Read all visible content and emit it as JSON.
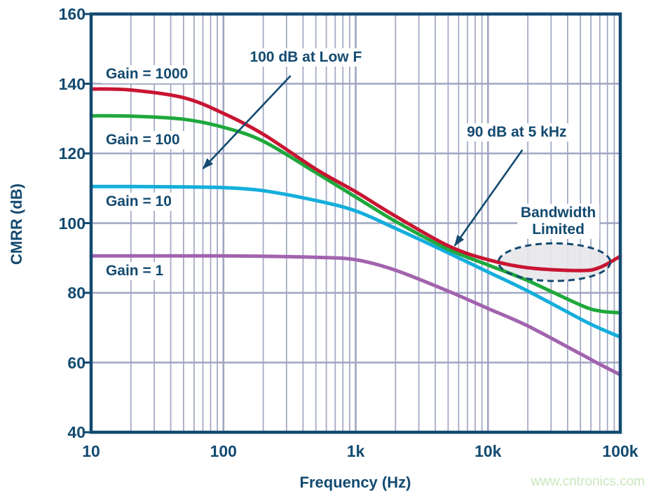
{
  "chart_data": {
    "type": "line",
    "x_scale": "log",
    "xlabel": "Frequency (Hz)",
    "ylabel": "CMRR (dB)",
    "xlim": [
      10,
      100000
    ],
    "ylim": [
      40,
      160
    ],
    "grid": true,
    "x_tick_labels": [
      "10",
      "100",
      "1k",
      "10k",
      "100k"
    ],
    "x_tick_values": [
      10,
      100,
      1000,
      10000,
      100000
    ],
    "y_ticks": [
      160,
      140,
      120,
      100,
      80,
      60,
      40
    ],
    "x": [
      10,
      20,
      50,
      100,
      200,
      500,
      1000,
      2000,
      5000,
      10000,
      20000,
      50000,
      70000,
      100000
    ],
    "series": [
      {
        "name": "Gain = 1000",
        "color": "#C81532",
        "values": [
          138.5,
          138.2,
          136.0,
          131.5,
          125.5,
          115.5,
          109.0,
          102.0,
          93.5,
          89.5,
          87.2,
          86.4,
          87.3,
          90.5
        ],
        "label_at": {
          "f": 12,
          "db": 142.7
        }
      },
      {
        "name": "Gain = 100",
        "color": "#1FA83C",
        "values": [
          130.8,
          130.7,
          129.8,
          127.5,
          123.5,
          114.5,
          107.5,
          100.5,
          92.5,
          88.0,
          83.5,
          76.5,
          74.8,
          74.3
        ],
        "label_at": {
          "f": 12,
          "db": 123.8
        }
      },
      {
        "name": "Gain = 10",
        "color": "#14AEDC",
        "values": [
          110.5,
          110.5,
          110.4,
          110.2,
          109.3,
          106.5,
          103.5,
          98.5,
          91.5,
          86.0,
          80.5,
          72.5,
          69.8,
          67.3
        ],
        "label_at": {
          "f": 12,
          "db": 106.1
        }
      },
      {
        "name": "Gain = 1",
        "color": "#A263AE",
        "values": [
          90.6,
          90.6,
          90.6,
          90.6,
          90.5,
          90.2,
          89.5,
          86.5,
          80.5,
          75.5,
          70.5,
          62.5,
          59.5,
          56.5
        ],
        "label_at": {
          "f": 12,
          "db": 86.2
        }
      }
    ],
    "annotations": [
      {
        "id": "low-f",
        "text": "100 dB at Low F",
        "text_at": {
          "f": 420,
          "db": 147.5
        },
        "arrow": {
          "from": {
            "f": 322,
            "db": 142.3
          },
          "to": {
            "f": 70,
            "db": 115.6
          }
        }
      },
      {
        "id": "5khz",
        "text": "90 dB at 5 kHz",
        "text_at": {
          "f": 16500,
          "db": 126.0
        },
        "arrow": {
          "from": {
            "f": 18200,
            "db": 121.0
          },
          "to": {
            "f": 5600,
            "db": 93.5
          }
        }
      },
      {
        "id": "bandwidth-limited",
        "text": "Bandwidth\nLimited",
        "text_at": {
          "f": 34000,
          "db": 100.5
        }
      }
    ],
    "highlight_ellipse": {
      "f_min": 12000,
      "f_max": 84000,
      "db_center": 88.8,
      "db_half": 5.4
    }
  },
  "watermark": {
    "text": "www.cntronics.com",
    "color": "#C9E7BD"
  },
  "colors": {
    "navy": "#134A70",
    "grid": "#A0A6C2",
    "background": "#FFFFFF",
    "ellipse_fill": "#E7E7EA"
  }
}
